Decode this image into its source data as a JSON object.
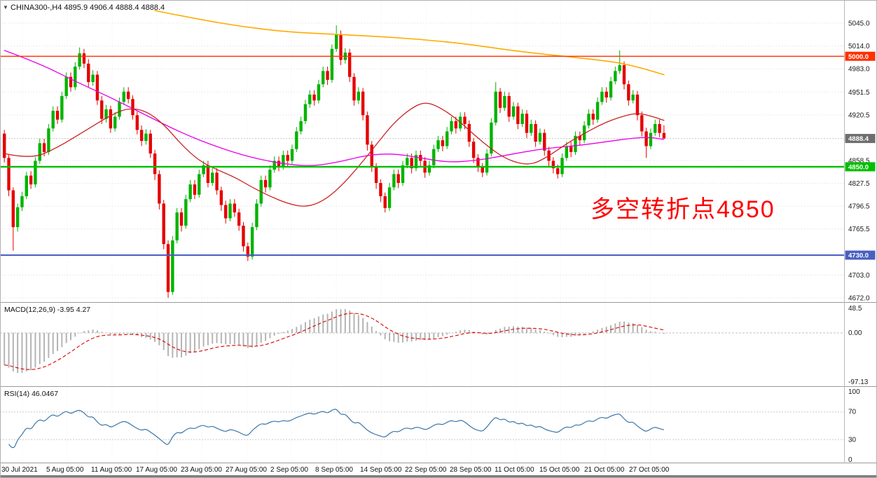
{
  "chart_data": {
    "type": "candlestick",
    "symbol": "CHINA300-",
    "timeframe": "H4",
    "title": "CHINA300-,H4 4895.9 4906.4 4888.4 4888.4",
    "current_bar": {
      "open": 4895.9,
      "high": 4906.4,
      "low": 4888.4,
      "close": 4888.4
    },
    "collapse_arrow": "▼",
    "colors": {
      "up": "#00b400",
      "down": "#e60000",
      "background": "#ffffff",
      "grid": "#e3e3e3"
    },
    "ylim": [
      4672.0,
      5045.0
    ],
    "candles_ohlc": [
      [
        4895,
        4900,
        4856,
        4862
      ],
      [
        4862,
        4866,
        4810,
        4818
      ],
      [
        4818,
        4822,
        4736,
        4768
      ],
      [
        4768,
        4800,
        4762,
        4795
      ],
      [
        4795,
        4816,
        4790,
        4810
      ],
      [
        4810,
        4843,
        4806,
        4838
      ],
      [
        4838,
        4844,
        4820,
        4826
      ],
      [
        4826,
        4863,
        4822,
        4858
      ],
      [
        4858,
        4888,
        4854,
        4882
      ],
      [
        4882,
        4888,
        4864,
        4870
      ],
      [
        4870,
        4908,
        4866,
        4902
      ],
      [
        4902,
        4932,
        4898,
        4926
      ],
      [
        4926,
        4932,
        4908,
        4914
      ],
      [
        4914,
        4952,
        4910,
        4946
      ],
      [
        4946,
        4978,
        4942,
        4972
      ],
      [
        4972,
        4978,
        4952,
        4958
      ],
      [
        4958,
        4992,
        4954,
        4986
      ],
      [
        4986,
        5012,
        4982,
        5004
      ],
      [
        5004,
        5010,
        4984,
        4990
      ],
      [
        4990,
        4996,
        4958,
        4965
      ],
      [
        4965,
        4981,
        4960,
        4975
      ],
      [
        4975,
        4980,
        4934,
        4940
      ],
      [
        4940,
        4946,
        4908,
        4915
      ],
      [
        4915,
        4934,
        4910,
        4928
      ],
      [
        4928,
        4933,
        4896,
        4902
      ],
      [
        4902,
        4924,
        4898,
        4918
      ],
      [
        4918,
        4944,
        4914,
        4938
      ],
      [
        4938,
        4958,
        4934,
        4952
      ],
      [
        4952,
        4958,
        4936,
        4942
      ],
      [
        4942,
        4947,
        4914,
        4920
      ],
      [
        4920,
        4925,
        4894,
        4900
      ],
      [
        4900,
        4906,
        4878,
        4885
      ],
      [
        4885,
        4901,
        4880,
        4895
      ],
      [
        4895,
        4900,
        4862,
        4868
      ],
      [
        4868,
        4873,
        4832,
        4840
      ],
      [
        4840,
        4845,
        4792,
        4800
      ],
      [
        4800,
        4805,
        4738,
        4745
      ],
      [
        4745,
        4750,
        4672,
        4680
      ],
      [
        4680,
        4756,
        4676,
        4750
      ],
      [
        4750,
        4794,
        4746,
        4788
      ],
      [
        4788,
        4794,
        4762,
        4770
      ],
      [
        4770,
        4812,
        4766,
        4806
      ],
      [
        4806,
        4832,
        4802,
        4826
      ],
      [
        4826,
        4832,
        4806,
        4812
      ],
      [
        4812,
        4846,
        4808,
        4840
      ],
      [
        4840,
        4858,
        4836,
        4852
      ],
      [
        4852,
        4858,
        4822,
        4828
      ],
      [
        4828,
        4848,
        4824,
        4842
      ],
      [
        4842,
        4848,
        4812,
        4818
      ],
      [
        4818,
        4823,
        4790,
        4798
      ],
      [
        4798,
        4804,
        4773,
        4780
      ],
      [
        4780,
        4806,
        4776,
        4800
      ],
      [
        4800,
        4806,
        4782,
        4788
      ],
      [
        4788,
        4793,
        4763,
        4770
      ],
      [
        4770,
        4775,
        4735,
        4742
      ],
      [
        4742,
        4747,
        4722,
        4728
      ],
      [
        4728,
        4774,
        4724,
        4768
      ],
      [
        4768,
        4806,
        4764,
        4800
      ],
      [
        4800,
        4838,
        4796,
        4832
      ],
      [
        4832,
        4838,
        4815,
        4822
      ],
      [
        4822,
        4852,
        4818,
        4846
      ],
      [
        4846,
        4864,
        4842,
        4858
      ],
      [
        4858,
        4864,
        4844,
        4850
      ],
      [
        4850,
        4872,
        4846,
        4866
      ],
      [
        4866,
        4872,
        4851,
        4858
      ],
      [
        4858,
        4880,
        4854,
        4874
      ],
      [
        4874,
        4904,
        4870,
        4898
      ],
      [
        4898,
        4918,
        4894,
        4912
      ],
      [
        4912,
        4941,
        4908,
        4935
      ],
      [
        4935,
        4954,
        4930,
        4948
      ],
      [
        4948,
        4954,
        4933,
        4940
      ],
      [
        4940,
        4968,
        4936,
        4962
      ],
      [
        4962,
        4986,
        4958,
        4980
      ],
      [
        4980,
        4986,
        4961,
        4968
      ],
      [
        4968,
        5016,
        4964,
        5010
      ],
      [
        5010,
        5042,
        5006,
        5030
      ],
      [
        5030,
        5035,
        4988,
        4995
      ],
      [
        4995,
        5011,
        4990,
        5005
      ],
      [
        5005,
        5010,
        4965,
        4972
      ],
      [
        4972,
        4977,
        4933,
        4940
      ],
      [
        4940,
        4958,
        4935,
        4952
      ],
      [
        4952,
        4957,
        4913,
        4920
      ],
      [
        4920,
        4925,
        4872,
        4880
      ],
      [
        4880,
        4885,
        4843,
        4850
      ],
      [
        4850,
        4855,
        4820,
        4828
      ],
      [
        4828,
        4833,
        4802,
        4810
      ],
      [
        4810,
        4815,
        4788,
        4794
      ],
      [
        4794,
        4828,
        4790,
        4822
      ],
      [
        4822,
        4846,
        4818,
        4840
      ],
      [
        4840,
        4846,
        4821,
        4828
      ],
      [
        4828,
        4858,
        4824,
        4852
      ],
      [
        4852,
        4868,
        4848,
        4862
      ],
      [
        4862,
        4868,
        4841,
        4848
      ],
      [
        4848,
        4872,
        4844,
        4866
      ],
      [
        4866,
        4872,
        4851,
        4858
      ],
      [
        4858,
        4863,
        4835,
        4842
      ],
      [
        4842,
        4858,
        4838,
        4852
      ],
      [
        4852,
        4880,
        4848,
        4874
      ],
      [
        4874,
        4892,
        4870,
        4886
      ],
      [
        4886,
        4892,
        4871,
        4878
      ],
      [
        4878,
        4904,
        4874,
        4898
      ],
      [
        4898,
        4918,
        4894,
        4912
      ],
      [
        4912,
        4918,
        4895,
        4902
      ],
      [
        4902,
        4924,
        4898,
        4918
      ],
      [
        4918,
        4924,
        4901,
        4908
      ],
      [
        4908,
        4913,
        4877,
        4884
      ],
      [
        4884,
        4889,
        4855,
        4862
      ],
      [
        4862,
        4867,
        4843,
        4850
      ],
      [
        4850,
        4855,
        4836,
        4842
      ],
      [
        4842,
        4874,
        4838,
        4868
      ],
      [
        4868,
        4916,
        4864,
        4910
      ],
      [
        4910,
        4965,
        4906,
        4952
      ],
      [
        4952,
        4957,
        4923,
        4930
      ],
      [
        4930,
        4952,
        4926,
        4946
      ],
      [
        4946,
        4951,
        4911,
        4918
      ],
      [
        4918,
        4938,
        4914,
        4932
      ],
      [
        4932,
        4937,
        4901,
        4908
      ],
      [
        4908,
        4928,
        4904,
        4922
      ],
      [
        4922,
        4927,
        4889,
        4896
      ],
      [
        4896,
        4914,
        4892,
        4908
      ],
      [
        4908,
        4913,
        4877,
        4884
      ],
      [
        4884,
        4902,
        4880,
        4896
      ],
      [
        4896,
        4901,
        4865,
        4872
      ],
      [
        4872,
        4877,
        4851,
        4858
      ],
      [
        4858,
        4863,
        4841,
        4848
      ],
      [
        4848,
        4853,
        4834,
        4840
      ],
      [
        4840,
        4868,
        4836,
        4862
      ],
      [
        4862,
        4884,
        4858,
        4878
      ],
      [
        4878,
        4884,
        4863,
        4870
      ],
      [
        4870,
        4898,
        4866,
        4892
      ],
      [
        4892,
        4898,
        4879,
        4886
      ],
      [
        4886,
        4912,
        4882,
        4906
      ],
      [
        4906,
        4928,
        4902,
        4922
      ],
      [
        4922,
        4928,
        4907,
        4914
      ],
      [
        4914,
        4944,
        4910,
        4938
      ],
      [
        4938,
        4958,
        4934,
        4952
      ],
      [
        4952,
        4958,
        4937,
        4944
      ],
      [
        4944,
        4972,
        4940,
        4966
      ],
      [
        4966,
        4986,
        4962,
        4980
      ],
      [
        4980,
        5008,
        4976,
        4988
      ],
      [
        4988,
        4993,
        4955,
        4962
      ],
      [
        4962,
        4967,
        4933,
        4940
      ],
      [
        4940,
        4954,
        4936,
        4948
      ],
      [
        4948,
        4953,
        4913,
        4920
      ],
      [
        4920,
        4925,
        4891,
        4898
      ],
      [
        4898,
        4903,
        4862,
        4878
      ],
      [
        4878,
        4902,
        4874,
        4896
      ],
      [
        4896,
        4914,
        4892,
        4908
      ],
      [
        4908,
        4914,
        4890,
        4895.9
      ],
      [
        4895.9,
        4906.4,
        4888.4,
        4888.4
      ]
    ],
    "overlays": {
      "ma_long_orange": {
        "color": "#ffaa00",
        "points": [
          [
            34,
            5062
          ],
          [
            44,
            5050
          ],
          [
            54,
            5040
          ],
          [
            64,
            5033
          ],
          [
            74,
            5030
          ],
          [
            84,
            5027
          ],
          [
            94,
            5023
          ],
          [
            104,
            5017
          ],
          [
            112,
            5010
          ],
          [
            120,
            5004
          ],
          [
            128,
            4999
          ],
          [
            134,
            4995
          ],
          [
            139,
            4991
          ],
          [
            144,
            4984
          ],
          [
            149,
            4975
          ]
        ]
      },
      "ma_slow_magenta": {
        "color": "#e800e8",
        "points": [
          [
            0,
            5008
          ],
          [
            8,
            4990
          ],
          [
            16,
            4966
          ],
          [
            24,
            4944
          ],
          [
            32,
            4920
          ],
          [
            40,
            4896
          ],
          [
            48,
            4877
          ],
          [
            56,
            4862
          ],
          [
            64,
            4853
          ],
          [
            70,
            4851
          ],
          [
            76,
            4857
          ],
          [
            82,
            4866
          ],
          [
            88,
            4868
          ],
          [
            94,
            4862
          ],
          [
            100,
            4856
          ],
          [
            106,
            4858
          ],
          [
            112,
            4864
          ],
          [
            118,
            4871
          ],
          [
            124,
            4876
          ],
          [
            130,
            4879
          ],
          [
            136,
            4884
          ],
          [
            142,
            4889
          ],
          [
            146,
            4890
          ],
          [
            149,
            4887
          ]
        ]
      },
      "ma_fast_red": {
        "color": "#cc2222",
        "points": [
          [
            0,
            4868
          ],
          [
            6,
            4860
          ],
          [
            12,
            4876
          ],
          [
            18,
            4898
          ],
          [
            24,
            4920
          ],
          [
            28,
            4930
          ],
          [
            32,
            4926
          ],
          [
            36,
            4908
          ],
          [
            40,
            4880
          ],
          [
            44,
            4858
          ],
          [
            48,
            4846
          ],
          [
            52,
            4836
          ],
          [
            56,
            4822
          ],
          [
            60,
            4810
          ],
          [
            64,
            4800
          ],
          [
            68,
            4795
          ],
          [
            72,
            4803
          ],
          [
            76,
            4823
          ],
          [
            80,
            4850
          ],
          [
            84,
            4880
          ],
          [
            88,
            4910
          ],
          [
            92,
            4930
          ],
          [
            95,
            4938
          ],
          [
            98,
            4932
          ],
          [
            102,
            4916
          ],
          [
            106,
            4894
          ],
          [
            110,
            4874
          ],
          [
            113,
            4862
          ],
          [
            116,
            4855
          ],
          [
            119,
            4853
          ],
          [
            122,
            4861
          ],
          [
            125,
            4873
          ],
          [
            128,
            4885
          ],
          [
            131,
            4895
          ],
          [
            134,
            4905
          ],
          [
            137,
            4913
          ],
          [
            140,
            4919
          ],
          [
            143,
            4923
          ],
          [
            146,
            4919
          ],
          [
            149,
            4913
          ]
        ]
      }
    },
    "hlines": [
      {
        "price": 5000.0,
        "label": "5000.0",
        "color": "#ff3000",
        "width": 1.4
      },
      {
        "price": 4850.0,
        "label": "4850.0",
        "color": "#00bf00",
        "width": 2.4
      },
      {
        "price": 4730.0,
        "label": "4730.0",
        "color": "#4a5fc0",
        "width": 2
      }
    ],
    "current_price": {
      "value": 4888.4,
      "label": "4888.4",
      "badge_color": "#6e6e6e"
    },
    "price_axis_ticks": [
      {
        "v": 5045.0,
        "label": "5045.0"
      },
      {
        "v": 5014.0,
        "label": "5014.0"
      },
      {
        "v": 4983.0,
        "label": "4983.0"
      },
      {
        "v": 4951.5,
        "label": "4951.5"
      },
      {
        "v": 4920.5,
        "label": "4920.5"
      },
      {
        "v": 4858.5,
        "label": "4858.5"
      },
      {
        "v": 4827.5,
        "label": "4827.5"
      },
      {
        "v": 4796.5,
        "label": "4796.5"
      },
      {
        "v": 4765.5,
        "label": "4765.5"
      },
      {
        "v": 4703.0,
        "label": "4703.0"
      },
      {
        "v": 4672.0,
        "label": "4672.0"
      }
    ],
    "annotation": {
      "text": "多空转折点4850",
      "color": "#ff0000"
    },
    "indicators": {
      "macd": {
        "label": "MACD(12,26,9) -3.95 4.27",
        "name": "MACD",
        "params": "12,26,9",
        "main_value": -3.95,
        "signal_value": 4.27,
        "axis_ticks": [
          {
            "v": 48.5,
            "label": "48.5"
          },
          {
            "v": 0,
            "label": "0.00"
          },
          {
            "v": -97.13,
            "label": "-97.13"
          }
        ],
        "histogram_color": "#b4b4b4",
        "signal_color": "#dd0000"
      },
      "rsi": {
        "label": "RSI(14) 46.0467",
        "name": "RSI",
        "period": 14,
        "value": 46.0467,
        "axis_ticks": [
          {
            "v": 100,
            "label": "100"
          },
          {
            "v": 70,
            "label": "70"
          },
          {
            "v": 30,
            "label": "30"
          },
          {
            "v": 0,
            "label": "0"
          }
        ],
        "levels": [
          70,
          30
        ],
        "line_color": "#3b76a8"
      }
    },
    "time_axis_labels": [
      "30 Jul 2021",
      "5 Aug 05:00",
      "11 Aug 05:00",
      "17 Aug 05:00",
      "23 Aug 05:00",
      "27 Aug 05:00",
      "2 Sep 05:00",
      "8 Sep 05:00",
      "14 Sep 05:00",
      "22 Sep 05:00",
      "28 Sep 05:00",
      "11 Oct 05:00",
      "15 Oct 05:00",
      "21 Oct 05:00",
      "27 Oct 05:00"
    ]
  }
}
